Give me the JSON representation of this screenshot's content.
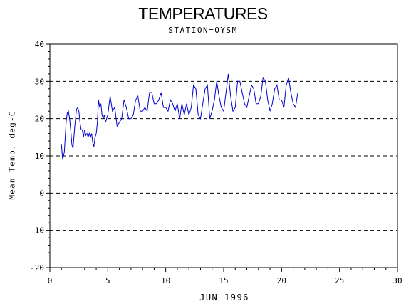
{
  "chart_data": {
    "type": "line",
    "title": "TEMPERATURES",
    "subtitle": "STATION=OYSM",
    "xlabel": "JUN 1996",
    "ylabel": "Mean Temp. deg-C",
    "xlim": [
      0,
      30
    ],
    "ylim": [
      -20,
      40
    ],
    "xticks": [
      "0",
      "5",
      "10",
      "15",
      "20",
      "25",
      "30"
    ],
    "yticks": [
      "-20",
      "-10",
      "0",
      "10",
      "20",
      "30",
      "40"
    ],
    "grid": "horizontal-dashed",
    "line_color": "#0000cc",
    "series": [
      {
        "x": [
          1.0,
          1.1,
          1.25,
          1.4,
          1.5,
          1.6,
          1.7,
          1.8,
          1.9,
          2.0,
          2.15,
          2.3,
          2.4,
          2.5,
          2.6,
          2.7,
          2.8,
          2.9,
          3.0,
          3.1,
          3.2,
          3.3,
          3.4,
          3.5,
          3.6,
          3.7,
          3.8,
          3.9,
          4.0,
          4.1,
          4.2,
          4.3,
          4.4,
          4.5,
          4.6,
          4.7,
          4.8,
          4.9,
          5.0,
          5.2,
          5.4,
          5.6,
          5.8,
          6.0,
          6.2,
          6.4,
          6.6,
          6.8,
          7.0,
          7.2,
          7.4,
          7.6,
          7.8,
          8.0,
          8.2,
          8.4,
          8.6,
          8.8,
          9.0,
          9.2,
          9.4,
          9.6,
          9.8,
          10.0,
          10.2,
          10.4,
          10.6,
          10.8,
          11.0,
          11.2,
          11.4,
          11.6,
          11.8,
          12.0,
          12.2,
          12.4,
          12.6,
          12.8,
          13.0,
          13.2,
          13.4,
          13.6,
          13.8,
          14.0,
          14.2,
          14.4,
          14.6,
          14.8,
          15.0,
          15.2,
          15.4,
          15.6,
          15.8,
          16.0,
          16.2,
          16.4,
          16.6,
          16.8,
          17.0,
          17.2,
          17.4,
          17.6,
          17.8,
          18.0,
          18.2,
          18.4,
          18.6,
          18.8,
          19.0,
          19.2,
          19.4,
          19.6,
          19.8,
          20.0,
          20.2,
          20.4,
          20.6,
          20.8,
          21.0,
          21.2,
          21.4
        ],
        "y": [
          13,
          9,
          11,
          19,
          21.5,
          22,
          20,
          17,
          13,
          12,
          18,
          22.5,
          23,
          22,
          19,
          17,
          17,
          15,
          17,
          15.5,
          16,
          15,
          16,
          15,
          16,
          13.5,
          12.5,
          15,
          16,
          19,
          25,
          23,
          24,
          21,
          20,
          21,
          19,
          20,
          21,
          26,
          22,
          23,
          18,
          19,
          20,
          25,
          23,
          20,
          20,
          21,
          25,
          26,
          22,
          22,
          23,
          22,
          27,
          27,
          24,
          24,
          25,
          27,
          23,
          23,
          22,
          25,
          24,
          22,
          24,
          20,
          24,
          21,
          24,
          21,
          23,
          29,
          28,
          21,
          20,
          24,
          28,
          29,
          20,
          22,
          25,
          30,
          26,
          23,
          22,
          27,
          32,
          26,
          22,
          23,
          30,
          30,
          27,
          24,
          23,
          26,
          29,
          28,
          24,
          24,
          26,
          31,
          30,
          25,
          22,
          24,
          28,
          29,
          25,
          25,
          23,
          29,
          31,
          27,
          24,
          23,
          27
        ]
      }
    ]
  }
}
